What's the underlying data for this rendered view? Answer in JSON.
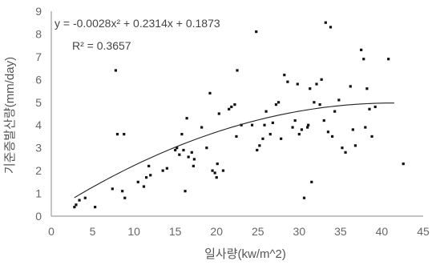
{
  "chart_data": {
    "type": "scatter",
    "title": "",
    "xlabel": "일사량(kw/m^2)",
    "ylabel": "기준증발산량(mm/day)",
    "xlim": [
      0,
      45
    ],
    "ylim": [
      0,
      9
    ],
    "x_ticks": [
      "0",
      "5",
      "10",
      "15",
      "20",
      "25",
      "30",
      "35",
      "40",
      "45"
    ],
    "y_ticks": [
      "0",
      "1",
      "2",
      "3",
      "4",
      "5",
      "6",
      "7",
      "8",
      "9"
    ],
    "grid": false,
    "legend": "none",
    "annotation": {
      "equation": "y = -0.0028x² + 0.2314x + 0.1873",
      "r2": "R² = 0.3657"
    },
    "trendline": {
      "a": -0.0028,
      "b": 0.2314,
      "c": 0.1873,
      "x_range": [
        2.8,
        41.5
      ]
    },
    "colors": {
      "points": "#111111",
      "trendline": "#222222",
      "axes": "#888888"
    },
    "points": [
      [
        2.8,
        0.4
      ],
      [
        3.0,
        0.5
      ],
      [
        3.4,
        0.7
      ],
      [
        4.1,
        0.8
      ],
      [
        5.3,
        0.4
      ],
      [
        7.4,
        1.2
      ],
      [
        7.8,
        6.4
      ],
      [
        8.0,
        3.6
      ],
      [
        8.6,
        1.1
      ],
      [
        8.8,
        3.6
      ],
      [
        8.9,
        0.8
      ],
      [
        10.5,
        1.5
      ],
      [
        11.2,
        1.3
      ],
      [
        11.5,
        1.7
      ],
      [
        11.8,
        2.2
      ],
      [
        12.0,
        1.8
      ],
      [
        13.5,
        2.0
      ],
      [
        14.0,
        2.1
      ],
      [
        15.0,
        2.9
      ],
      [
        15.2,
        3.0
      ],
      [
        15.5,
        2.7
      ],
      [
        15.8,
        3.6
      ],
      [
        16.0,
        2.9
      ],
      [
        16.2,
        1.1
      ],
      [
        16.4,
        4.3
      ],
      [
        16.6,
        2.6
      ],
      [
        17.0,
        2.8
      ],
      [
        17.2,
        2.2
      ],
      [
        17.3,
        2.5
      ],
      [
        18.2,
        3.9
      ],
      [
        18.8,
        3.0
      ],
      [
        19.2,
        5.4
      ],
      [
        19.5,
        2.0
      ],
      [
        19.8,
        1.9
      ],
      [
        20.0,
        1.7
      ],
      [
        20.1,
        2.3
      ],
      [
        20.3,
        4.5
      ],
      [
        20.8,
        2.0
      ],
      [
        21.5,
        4.7
      ],
      [
        21.8,
        4.8
      ],
      [
        22.2,
        4.9
      ],
      [
        22.4,
        3.5
      ],
      [
        22.5,
        6.4
      ],
      [
        23.0,
        4.0
      ],
      [
        24.3,
        4.0
      ],
      [
        24.8,
        8.1
      ],
      [
        24.9,
        2.9
      ],
      [
        25.2,
        3.1
      ],
      [
        25.6,
        3.4
      ],
      [
        25.8,
        4.0
      ],
      [
        26.0,
        4.6
      ],
      [
        26.5,
        3.6
      ],
      [
        26.8,
        4.1
      ],
      [
        27.2,
        4.9
      ],
      [
        27.5,
        5.0
      ],
      [
        27.8,
        3.4
      ],
      [
        28.2,
        6.2
      ],
      [
        28.6,
        5.9
      ],
      [
        29.2,
        3.9
      ],
      [
        29.5,
        4.2
      ],
      [
        29.8,
        5.8
      ],
      [
        30.0,
        3.6
      ],
      [
        30.3,
        3.8
      ],
      [
        30.6,
        0.8
      ],
      [
        31.0,
        3.9
      ],
      [
        31.1,
        4.0
      ],
      [
        31.3,
        5.6
      ],
      [
        31.5,
        1.5
      ],
      [
        31.8,
        5.0
      ],
      [
        32.1,
        5.8
      ],
      [
        32.5,
        4.9
      ],
      [
        32.7,
        6.0
      ],
      [
        33.0,
        4.2
      ],
      [
        33.2,
        8.5
      ],
      [
        33.5,
        3.7
      ],
      [
        33.8,
        8.3
      ],
      [
        34.0,
        3.5
      ],
      [
        34.3,
        4.6
      ],
      [
        34.8,
        5.1
      ],
      [
        35.2,
        3.0
      ],
      [
        35.6,
        2.8
      ],
      [
        36.2,
        5.7
      ],
      [
        36.5,
        3.8
      ],
      [
        36.8,
        3.1
      ],
      [
        37.5,
        7.3
      ],
      [
        37.8,
        6.9
      ],
      [
        38.0,
        3.9
      ],
      [
        38.2,
        5.6
      ],
      [
        38.5,
        4.7
      ],
      [
        38.8,
        3.5
      ],
      [
        39.2,
        4.8
      ],
      [
        40.8,
        6.9
      ],
      [
        42.6,
        2.3
      ]
    ]
  }
}
